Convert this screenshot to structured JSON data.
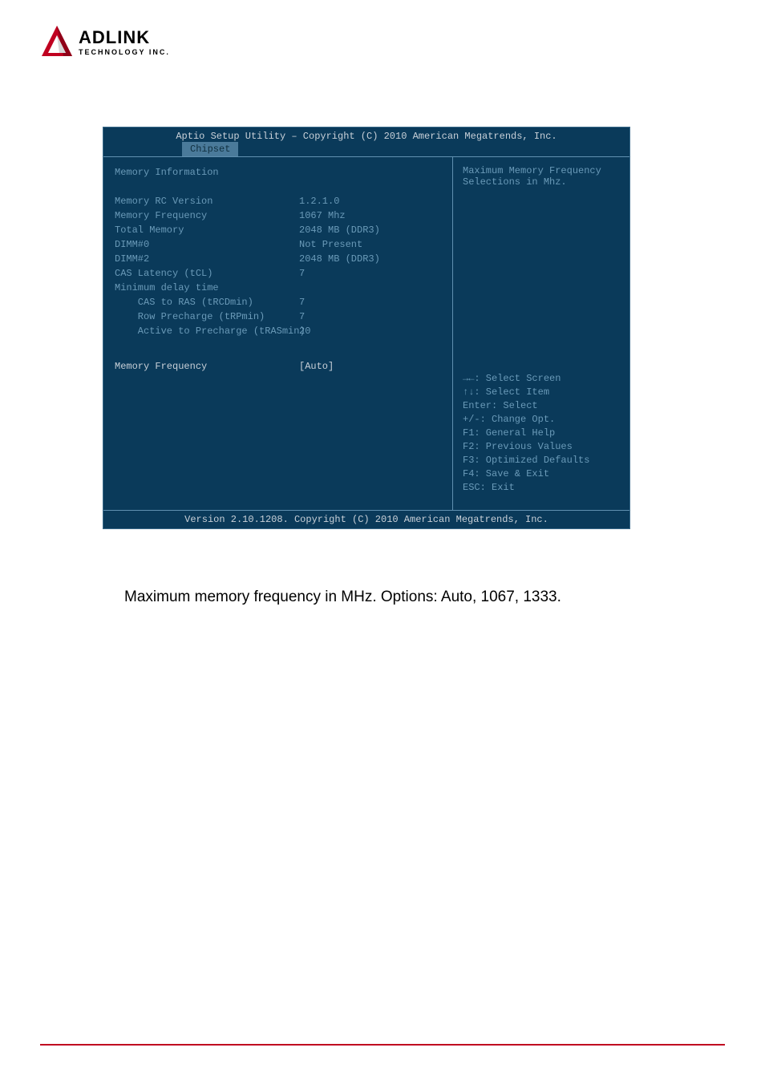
{
  "logo": {
    "triangle_color": "#c00020",
    "name": "ADLINK",
    "tagline": "TECHNOLOGY INC."
  },
  "bios": {
    "colors": {
      "bg": "#0a3a5a",
      "border": "#3a6a8a",
      "divider": "#6090b0",
      "text_dim": "#6a9ab8",
      "text_bright": "#c8d0d8",
      "tab_bg": "#4a7a9a",
      "tab_text": "#103040"
    },
    "header": "Aptio Setup Utility – Copyright (C) 2010 American Megatrends, Inc.",
    "tab": "Chipset",
    "section_title": "Memory Information",
    "rows": [
      {
        "label": "Memory RC Version",
        "value": "1.2.1.0"
      },
      {
        "label": "Memory Frequency",
        "value": "1067 Mhz"
      },
      {
        "label": "Total Memory",
        "value": "2048 MB (DDR3)"
      },
      {
        "label": "DIMM#0",
        "value": "Not Present"
      },
      {
        "label": "DIMM#2",
        "value": "2048 MB (DDR3)"
      },
      {
        "label": "CAS Latency (tCL)",
        "value": "7"
      },
      {
        "label": "Minimum delay time",
        "value": ""
      },
      {
        "label": "    CAS to RAS (tRCDmin)",
        "value": "7"
      },
      {
        "label": "    Row Precharge (tRPmin)",
        "value": "7"
      },
      {
        "label": "    Active to Precharge (tRASmin)",
        "value": "20"
      }
    ],
    "setting": {
      "label": "Memory Frequency",
      "value": "[Auto]"
    },
    "right_desc": "Maximum Memory Frequency Selections in Mhz.",
    "help_lines": [
      "→←: Select Screen",
      "↑↓: Select Item",
      "Enter: Select",
      "+/-: Change Opt.",
      "F1: General Help",
      "F2: Previous Values",
      "F3: Optimized Defaults",
      "F4: Save & Exit",
      "ESC: Exit"
    ],
    "footer": "Version 2.10.1208. Copyright (C) 2010 American Megatrends, Inc."
  },
  "caption": "Maximum memory frequency in MHz. Options: Auto, 1067, 1333.",
  "bottom_line_color": "#c00020"
}
